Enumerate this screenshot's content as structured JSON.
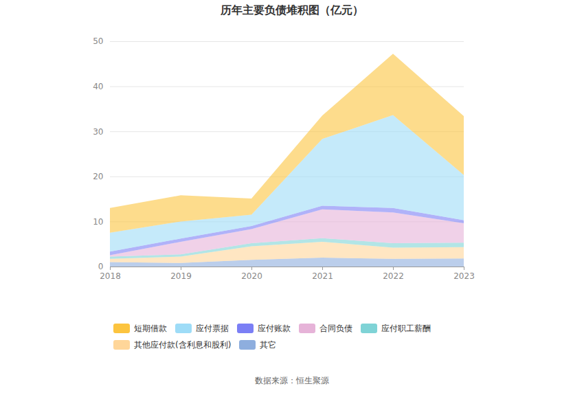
{
  "chart_data": {
    "type": "area",
    "title": "历年主要负债堆积图（亿元）",
    "source": "数据来源：恒生聚源",
    "stacked": true,
    "grid": true,
    "x": [
      2018,
      2019,
      2020,
      2021,
      2022,
      2023
    ],
    "xlim": [
      2018,
      2023
    ],
    "xticks": [
      2018,
      2019,
      2020,
      2021,
      2022,
      2023
    ],
    "ylim": [
      0,
      50
    ],
    "yticks": [
      0,
      10,
      20,
      30,
      40,
      50
    ],
    "series": [
      {
        "name": "短期借款",
        "color": "#fcc43f",
        "values": [
          5.5,
          5.8,
          3.6,
          5.2,
          13.6,
          13.1
        ]
      },
      {
        "name": "应付票据",
        "color": "#9edcf7",
        "values": [
          4.2,
          3.8,
          2.5,
          14.8,
          20.6,
          10.0
        ]
      },
      {
        "name": "应付账款",
        "color": "#7b7ff5",
        "values": [
          0.8,
          0.7,
          0.7,
          0.8,
          1.0,
          0.7
        ]
      },
      {
        "name": "合同负债",
        "color": "#e6b3d8",
        "values": [
          0.3,
          2.8,
          3.1,
          6.4,
          6.8,
          4.3
        ]
      },
      {
        "name": "应付职工薪酬",
        "color": "#7fd3d6",
        "values": [
          0.5,
          0.5,
          0.7,
          0.8,
          1.0,
          1.0
        ]
      },
      {
        "name": "其他应付款(含利息和股利)",
        "color": "#ffd699",
        "values": [
          0.7,
          1.4,
          3.0,
          3.5,
          2.5,
          2.5
        ]
      },
      {
        "name": "其它",
        "color": "#8eaede",
        "values": [
          1.0,
          0.8,
          1.5,
          2.0,
          1.7,
          1.8
        ]
      }
    ]
  }
}
